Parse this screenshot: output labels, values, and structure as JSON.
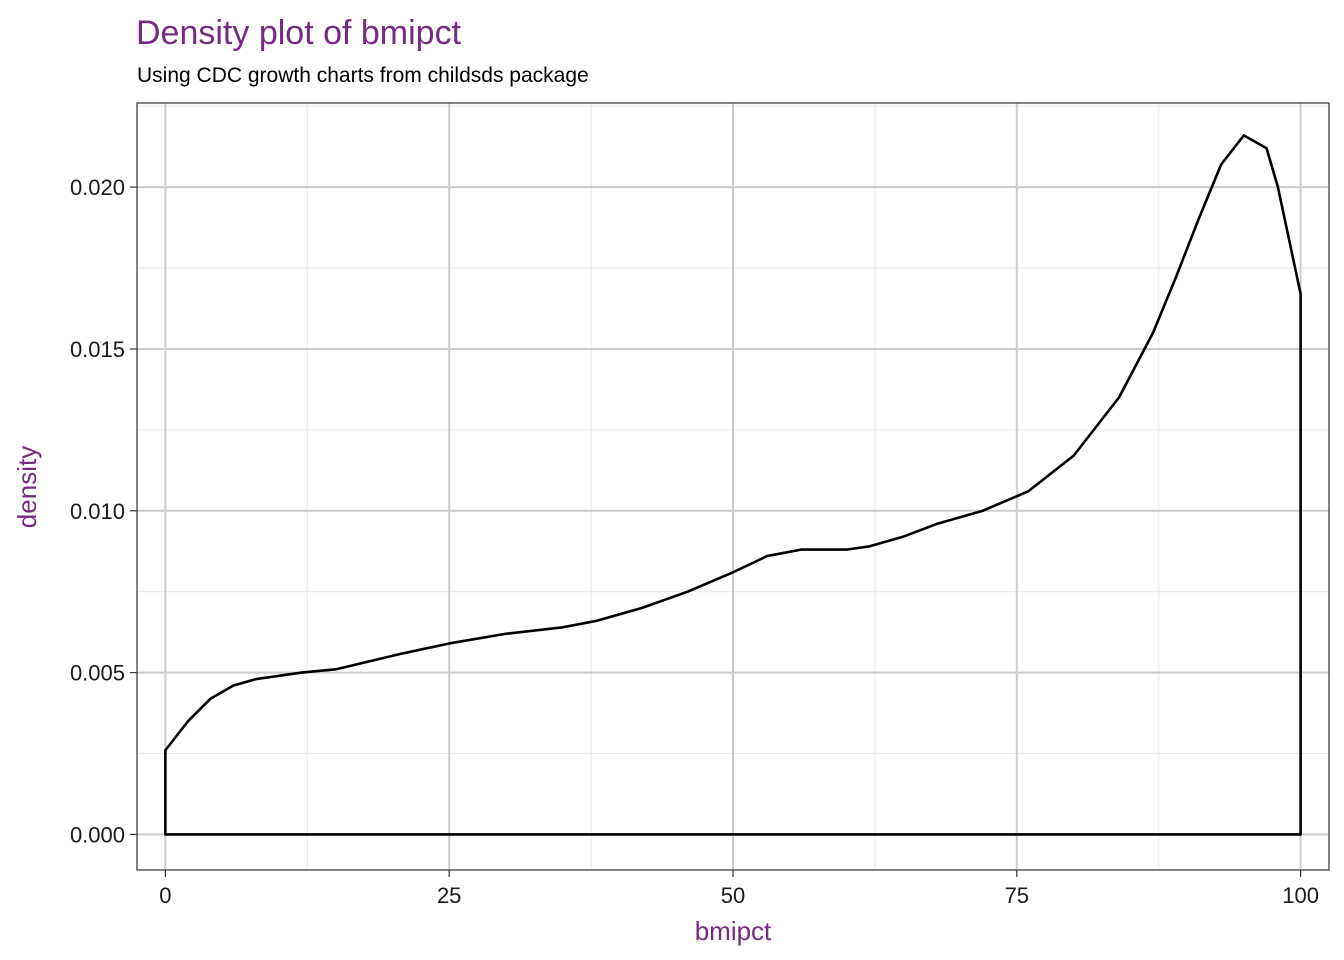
{
  "chart_data": {
    "type": "area",
    "title": "Density plot of bmipct",
    "subtitle": "Using CDC growth charts from childsds package",
    "xlabel": "bmipct",
    "ylabel": "density",
    "xlim": [
      -2.5,
      102.5
    ],
    "ylim": [
      -0.0011,
      0.0226
    ],
    "x_ticks": [
      0,
      25,
      50,
      75,
      100
    ],
    "x_tick_labels": [
      "0",
      "25",
      "50",
      "75",
      "100"
    ],
    "y_ticks": [
      0,
      0.005,
      0.01,
      0.015,
      0.02
    ],
    "y_tick_labels": [
      "0.000",
      "0.005",
      "0.010",
      "0.015",
      "0.020"
    ],
    "grid": true,
    "fill": "none",
    "colors": {
      "title": "#762a83",
      "axis_title": "#762a83",
      "line": "#000000",
      "grid_major": "#cccccc",
      "grid_minor": "#ebebeb",
      "panel_border": "#333333"
    },
    "series": [
      {
        "x": [
          0,
          2,
          4,
          6,
          8,
          10,
          12,
          15,
          18,
          21,
          25,
          30,
          35,
          38,
          42,
          46,
          50,
          53,
          56,
          58,
          60,
          62,
          65,
          68,
          72,
          76,
          80,
          84,
          87,
          89,
          91,
          93,
          95,
          97,
          98,
          100
        ],
        "y": [
          0.0026,
          0.0035,
          0.0042,
          0.0046,
          0.0048,
          0.0049,
          0.005,
          0.0051,
          0.00535,
          0.0056,
          0.0059,
          0.0062,
          0.0064,
          0.0066,
          0.007,
          0.0075,
          0.0081,
          0.0086,
          0.0088,
          0.0088,
          0.0088,
          0.0089,
          0.0092,
          0.0096,
          0.01,
          0.0106,
          0.0117,
          0.0135,
          0.0155,
          0.0172,
          0.019,
          0.0207,
          0.0216,
          0.0212,
          0.02,
          0.0167
        ]
      }
    ]
  }
}
